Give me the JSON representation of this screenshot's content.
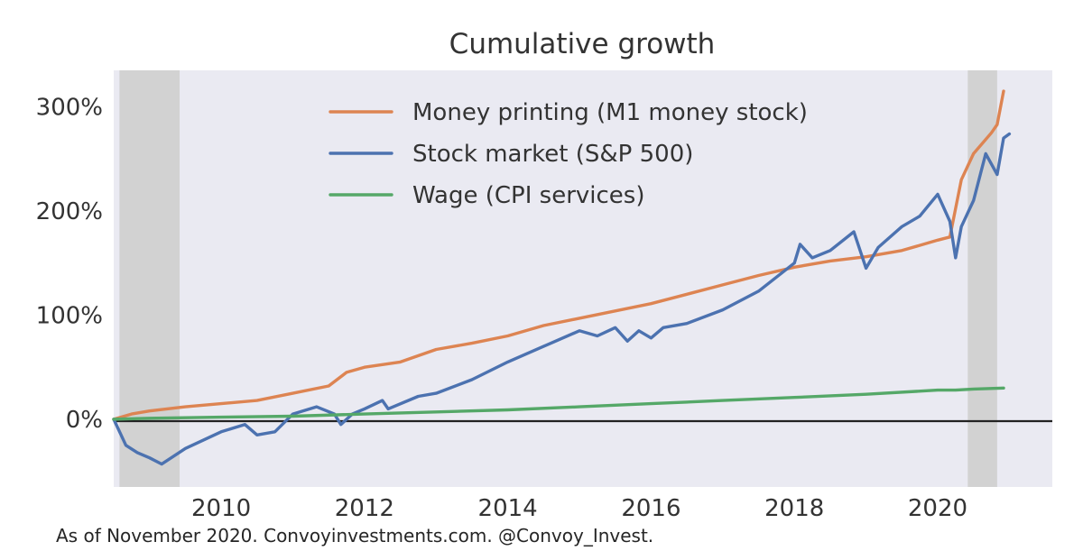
{
  "chart_data": {
    "type": "line",
    "title": "Cumulative growth",
    "xlabel": "",
    "ylabel": "",
    "x_ticks": [
      2010,
      2012,
      2014,
      2016,
      2018,
      2020
    ],
    "x_tick_labels": [
      "2010",
      "2012",
      "2014",
      "2016",
      "2018",
      "2020"
    ],
    "y_ticks": [
      0,
      100,
      200,
      300
    ],
    "y_tick_labels": [
      "0%",
      "100%",
      "200%",
      "300%"
    ],
    "xlim": [
      2008.5,
      2021.6
    ],
    "ylim": [
      -65,
      335
    ],
    "grid": false,
    "legend_position": "top-center",
    "recession_bands": [
      [
        2008.58,
        2009.42
      ],
      [
        2020.42,
        2020.83
      ]
    ],
    "zero_line": true,
    "series": [
      {
        "name": "Money printing (M1 money stock)",
        "color": "#dd8452",
        "points": [
          [
            2008.5,
            0
          ],
          [
            2008.75,
            5
          ],
          [
            2009.0,
            8
          ],
          [
            2009.5,
            12
          ],
          [
            2010.0,
            15
          ],
          [
            2010.5,
            18
          ],
          [
            2011.0,
            25
          ],
          [
            2011.5,
            32
          ],
          [
            2011.75,
            45
          ],
          [
            2012.0,
            50
          ],
          [
            2012.5,
            55
          ],
          [
            2013.0,
            67
          ],
          [
            2013.5,
            73
          ],
          [
            2014.0,
            80
          ],
          [
            2014.5,
            90
          ],
          [
            2015.0,
            97
          ],
          [
            2015.5,
            104
          ],
          [
            2016.0,
            111
          ],
          [
            2016.5,
            120
          ],
          [
            2017.0,
            129
          ],
          [
            2017.5,
            138
          ],
          [
            2018.0,
            146
          ],
          [
            2018.5,
            152
          ],
          [
            2019.0,
            156
          ],
          [
            2019.5,
            162
          ],
          [
            2020.0,
            172
          ],
          [
            2020.17,
            175
          ],
          [
            2020.33,
            230
          ],
          [
            2020.5,
            255
          ],
          [
            2020.75,
            275
          ],
          [
            2020.83,
            283
          ],
          [
            2020.92,
            315
          ]
        ]
      },
      {
        "name": "Stock market (S&P 500)",
        "color": "#4c72b0",
        "points": [
          [
            2008.5,
            0
          ],
          [
            2008.67,
            -25
          ],
          [
            2008.83,
            -32
          ],
          [
            2009.0,
            -37
          ],
          [
            2009.17,
            -43
          ],
          [
            2009.5,
            -28
          ],
          [
            2010.0,
            -12
          ],
          [
            2010.33,
            -5
          ],
          [
            2010.5,
            -15
          ],
          [
            2010.75,
            -12
          ],
          [
            2011.0,
            5
          ],
          [
            2011.33,
            12
          ],
          [
            2011.58,
            5
          ],
          [
            2011.67,
            -5
          ],
          [
            2011.83,
            5
          ],
          [
            2012.0,
            10
          ],
          [
            2012.25,
            18
          ],
          [
            2012.33,
            10
          ],
          [
            2012.75,
            22
          ],
          [
            2013.0,
            25
          ],
          [
            2013.5,
            38
          ],
          [
            2014.0,
            55
          ],
          [
            2014.5,
            70
          ],
          [
            2015.0,
            85
          ],
          [
            2015.25,
            80
          ],
          [
            2015.5,
            88
          ],
          [
            2015.67,
            75
          ],
          [
            2015.83,
            85
          ],
          [
            2016.0,
            78
          ],
          [
            2016.17,
            88
          ],
          [
            2016.5,
            92
          ],
          [
            2017.0,
            105
          ],
          [
            2017.5,
            123
          ],
          [
            2018.0,
            150
          ],
          [
            2018.08,
            168
          ],
          [
            2018.25,
            155
          ],
          [
            2018.5,
            162
          ],
          [
            2018.83,
            180
          ],
          [
            2019.0,
            145
          ],
          [
            2019.17,
            165
          ],
          [
            2019.5,
            185
          ],
          [
            2019.75,
            195
          ],
          [
            2020.0,
            216
          ],
          [
            2020.17,
            190
          ],
          [
            2020.25,
            155
          ],
          [
            2020.33,
            185
          ],
          [
            2020.5,
            210
          ],
          [
            2020.67,
            255
          ],
          [
            2020.83,
            235
          ],
          [
            2020.92,
            270
          ],
          [
            2021.0,
            274
          ]
        ]
      },
      {
        "name": "Wage (CPI services)",
        "color": "#55a868",
        "points": [
          [
            2008.5,
            0
          ],
          [
            2009.0,
            1
          ],
          [
            2010.0,
            2
          ],
          [
            2011.0,
            3
          ],
          [
            2012.0,
            5
          ],
          [
            2013.0,
            7
          ],
          [
            2014.0,
            9
          ],
          [
            2015.0,
            12
          ],
          [
            2016.0,
            15
          ],
          [
            2017.0,
            18
          ],
          [
            2018.0,
            21
          ],
          [
            2019.0,
            24
          ],
          [
            2020.0,
            28
          ],
          [
            2020.25,
            28
          ],
          [
            2020.5,
            29
          ],
          [
            2020.92,
            30
          ]
        ]
      }
    ]
  },
  "footnote": "As of November 2020. Convoyinvestments.com. @Convoy_Invest."
}
